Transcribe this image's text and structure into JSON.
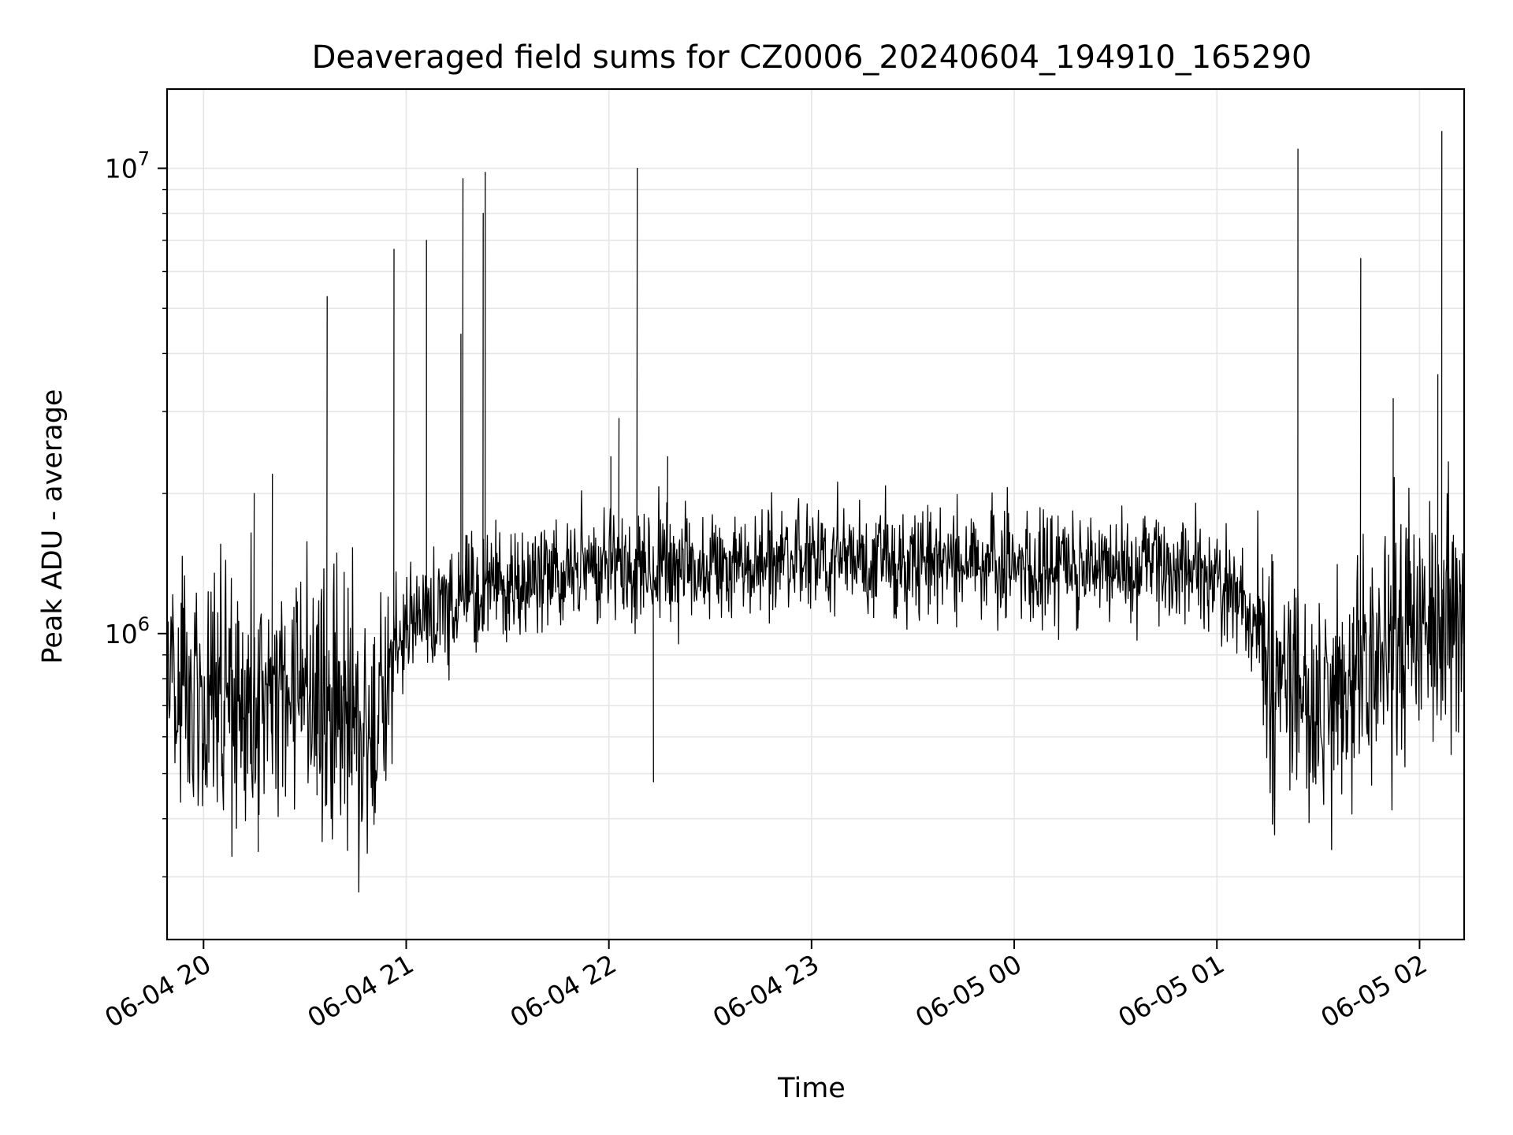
{
  "chart_data": {
    "type": "line",
    "title": "Deaveraged field sums for CZ0006_20240604_194910_165290",
    "xlabel": "Time",
    "ylabel": "Peak ADU - average",
    "yscale": "log",
    "grid": true,
    "line_color": "#000000",
    "grid_color": "#e6e6e6",
    "x_unit": "hours since 06-04 20:00",
    "xlim": [
      -0.18,
      6.22
    ],
    "ylim": [
      220000,
      14800000
    ],
    "x_ticks": [
      {
        "value": 0,
        "label": "06-04 20"
      },
      {
        "value": 1,
        "label": "06-04 21"
      },
      {
        "value": 2,
        "label": "06-04 22"
      },
      {
        "value": 3,
        "label": "06-04 23"
      },
      {
        "value": 4,
        "label": "06-05 00"
      },
      {
        "value": 5,
        "label": "06-05 01"
      },
      {
        "value": 6,
        "label": "06-05 02"
      }
    ],
    "y_ticks": [
      {
        "value": 1000000,
        "base": "10",
        "exp": "6"
      },
      {
        "value": 10000000,
        "base": "10",
        "exp": "7"
      }
    ],
    "baseline": [
      [
        -0.18,
        800000
      ],
      [
        0.0,
        750000
      ],
      [
        0.3,
        720000
      ],
      [
        0.6,
        680000
      ],
      [
        0.85,
        640000
      ],
      [
        0.92,
        780000
      ],
      [
        1.0,
        1080000
      ],
      [
        1.2,
        1150000
      ],
      [
        1.5,
        1300000
      ],
      [
        1.8,
        1380000
      ],
      [
        2.2,
        1400000
      ],
      [
        2.6,
        1420000
      ],
      [
        3.0,
        1430000
      ],
      [
        3.5,
        1420000
      ],
      [
        4.0,
        1400000
      ],
      [
        4.5,
        1400000
      ],
      [
        4.9,
        1380000
      ],
      [
        5.1,
        1250000
      ],
      [
        5.25,
        900000
      ],
      [
        5.45,
        700000
      ],
      [
        5.7,
        850000
      ],
      [
        6.0,
        1000000
      ],
      [
        6.22,
        1050000
      ]
    ],
    "spikes": [
      [
        0.61,
        5300000
      ],
      [
        0.94,
        6700000
      ],
      [
        1.1,
        7000000
      ],
      [
        1.27,
        4400000
      ],
      [
        1.28,
        9500000
      ],
      [
        1.38,
        8000000
      ],
      [
        1.39,
        9800000
      ],
      [
        2.01,
        2400000
      ],
      [
        2.05,
        2900000
      ],
      [
        2.14,
        10000000
      ],
      [
        2.22,
        480000
      ],
      [
        2.29,
        2400000
      ],
      [
        5.4,
        11000000
      ],
      [
        5.71,
        6400000
      ],
      [
        5.87,
        3200000
      ],
      [
        6.09,
        3600000
      ],
      [
        6.11,
        12000000
      ],
      [
        0.25,
        2000000
      ],
      [
        0.34,
        2200000
      ],
      [
        0.56,
        450000
      ],
      [
        0.27,
        340000
      ]
    ]
  }
}
